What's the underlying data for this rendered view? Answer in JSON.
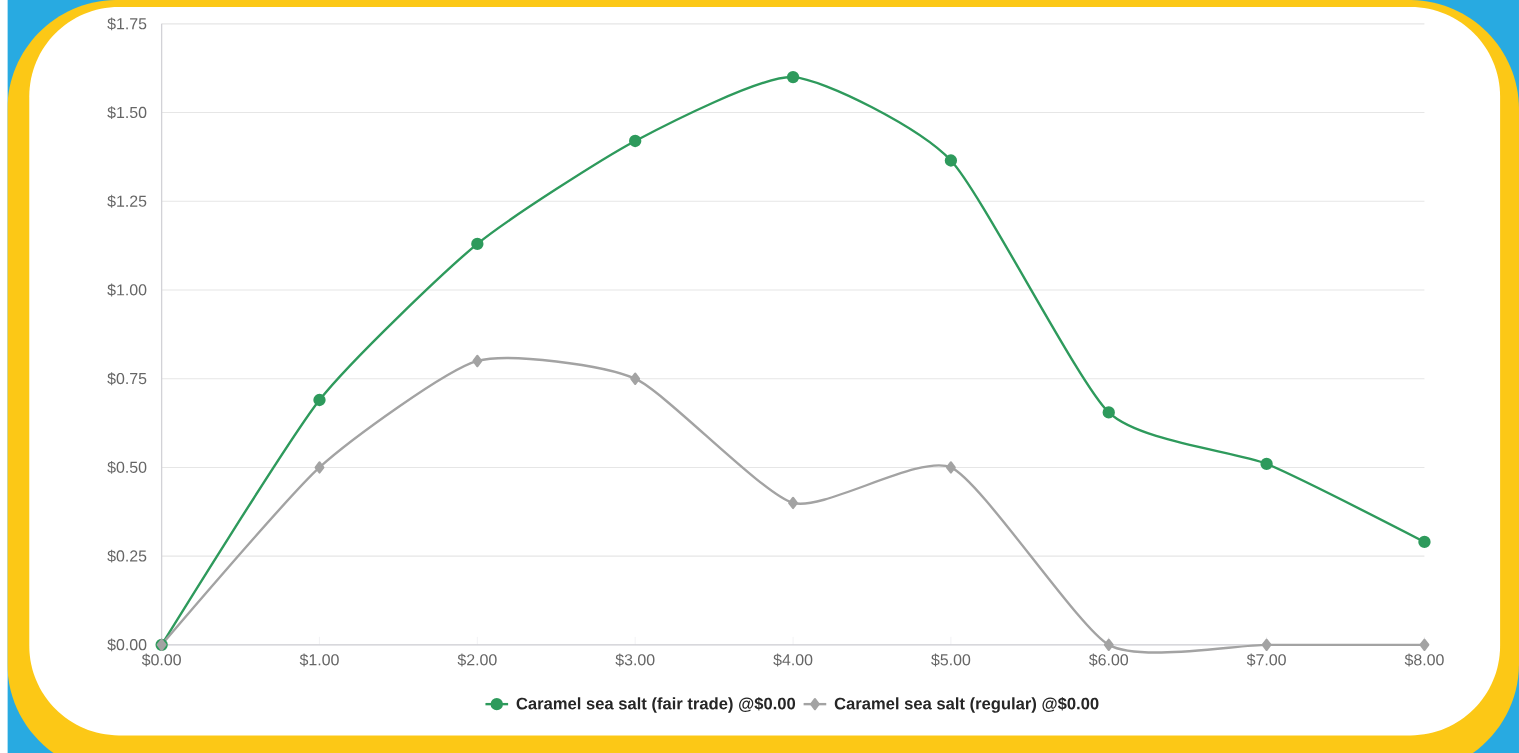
{
  "chart_data": {
    "type": "line",
    "x": [
      0,
      1,
      2,
      3,
      4,
      5,
      6,
      7,
      8
    ],
    "series": [
      {
        "name": "Caramel sea salt (fair trade) @$0.00",
        "color": "#2e9a5c",
        "marker": "circle",
        "values": [
          0,
          0.69,
          1.13,
          1.42,
          1.6,
          1.365,
          0.655,
          0.51,
          0.29
        ]
      },
      {
        "name": "Caramel sea salt (regular) @$0.00",
        "color": "#a3a3a3",
        "marker": "diamond",
        "values": [
          0,
          0.5,
          0.8,
          0.75,
          0.4,
          0.5,
          0,
          0,
          0
        ]
      }
    ],
    "xlim": [
      0,
      8
    ],
    "xticks": [
      {
        "value": 0,
        "label": "$0.00"
      },
      {
        "value": 1,
        "label": "$1.00"
      },
      {
        "value": 2,
        "label": "$2.00"
      },
      {
        "value": 3,
        "label": "$3.00"
      },
      {
        "value": 4,
        "label": "$4.00"
      },
      {
        "value": 5,
        "label": "$5.00"
      },
      {
        "value": 6,
        "label": "$6.00"
      },
      {
        "value": 7,
        "label": "$7.00"
      },
      {
        "value": 8,
        "label": "$8.00"
      }
    ],
    "ylim": [
      0,
      1.75
    ],
    "yticks": [
      {
        "value": 0,
        "label": "$0.00"
      },
      {
        "value": 0.25,
        "label": "$0.25"
      },
      {
        "value": 0.5,
        "label": "$0.50"
      },
      {
        "value": 0.75,
        "label": "$0.75"
      },
      {
        "value": 1,
        "label": "$1.00"
      },
      {
        "value": 1.25,
        "label": "$1.25"
      },
      {
        "value": 1.5,
        "label": "$1.50"
      },
      {
        "value": 1.75,
        "label": "$1.75"
      }
    ],
    "grid": "y",
    "legend": "bottom",
    "line_style": "solid"
  }
}
